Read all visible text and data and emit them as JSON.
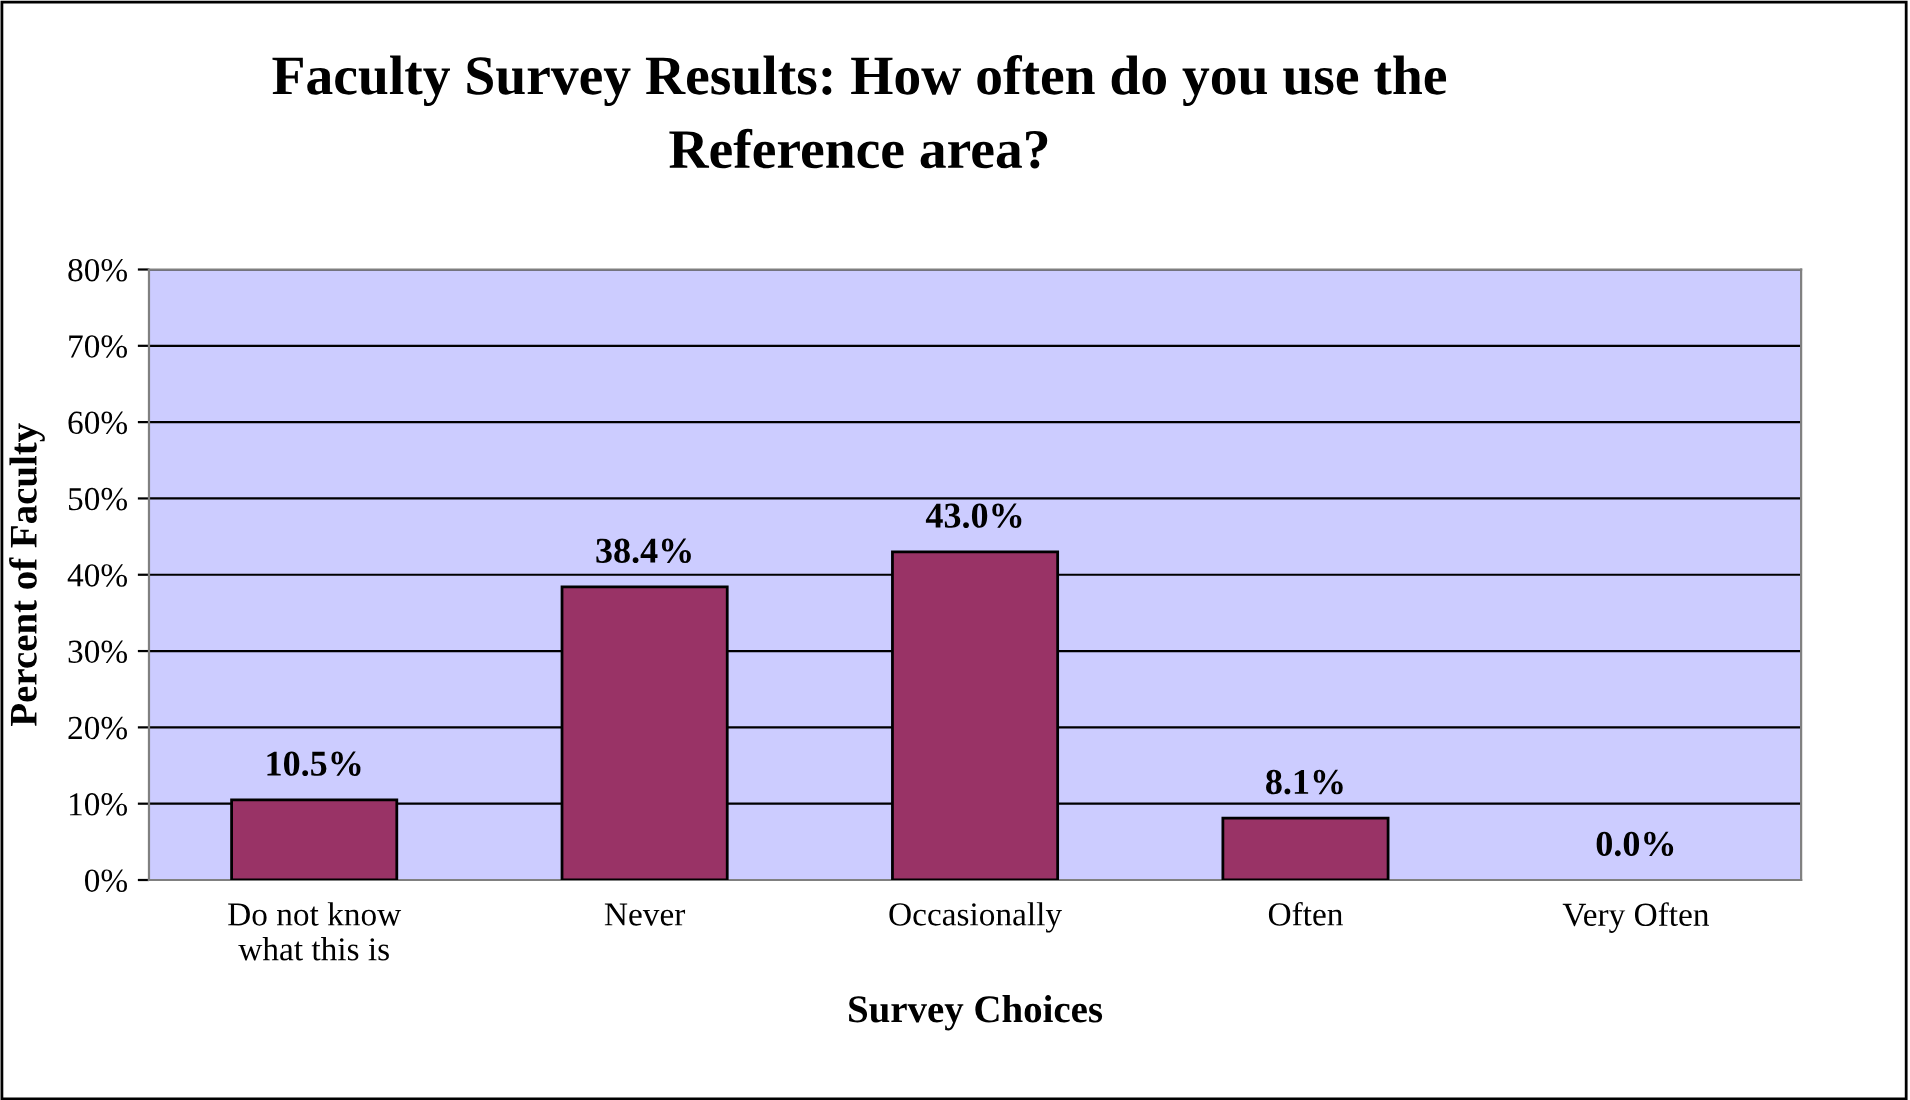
{
  "chart_data": {
    "type": "bar",
    "title": "Faculty Survey Results: How often do you use the\nReference area?",
    "xlabel": "Survey Choices",
    "ylabel": "Percent of Faculty",
    "categories": [
      "Do not know\nwhat this is",
      "Never",
      "Occasionally",
      "Often",
      "Very Often"
    ],
    "values": [
      10.5,
      38.4,
      43.0,
      8.1,
      0.0
    ],
    "value_labels": [
      "10.5%",
      "38.4%",
      "43.0%",
      "8.1%",
      "0.0%"
    ],
    "color": "#993366",
    "ylim": [
      0,
      80
    ],
    "yticks": [
      {
        "value": 0,
        "label": "0%"
      },
      {
        "value": 10,
        "label": "10%"
      },
      {
        "value": 20,
        "label": "20%"
      },
      {
        "value": 30,
        "label": "30%"
      },
      {
        "value": 40,
        "label": "40%"
      },
      {
        "value": 50,
        "label": "50%"
      },
      {
        "value": 60,
        "label": "60%"
      },
      {
        "value": 70,
        "label": "70%"
      },
      {
        "value": 80,
        "label": "80%"
      }
    ],
    "grid": "y"
  }
}
